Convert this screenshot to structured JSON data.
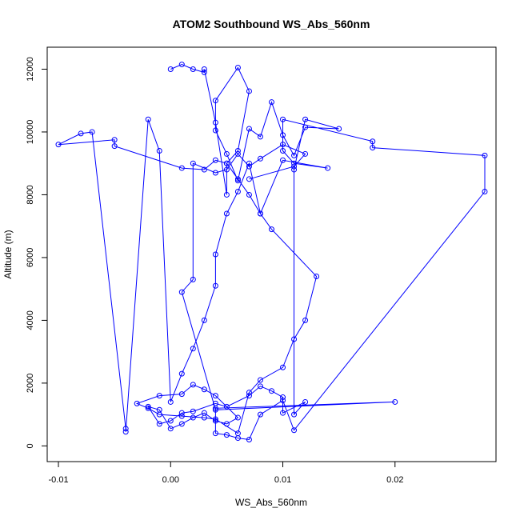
{
  "chart_data": {
    "type": "line",
    "title": "ATOM2 Southbound WS_Abs_560nm",
    "xlabel": "WS_Abs_560nm",
    "ylabel": "Altitude (m)",
    "xlim": [
      -0.011,
      0.029
    ],
    "ylim": [
      -500,
      12700
    ],
    "x_ticks": [
      -0.01,
      0.0,
      0.01,
      0.02
    ],
    "x_tick_labels": [
      "-0.01",
      "0.00",
      "0.01",
      "0.02"
    ],
    "y_ticks": [
      0,
      2000,
      4000,
      6000,
      8000,
      10000,
      12000
    ],
    "y_tick_labels": [
      "0",
      "2000",
      "4000",
      "6000",
      "8000",
      "10000",
      "12000"
    ],
    "grid": false,
    "legend": "none",
    "series": [
      {
        "color": "#0000ff",
        "marker": "open-circle",
        "x": [
          0.0,
          0.001,
          0.002,
          0.003,
          0.003,
          0.004,
          0.005,
          0.005,
          0.006,
          0.007,
          0.006,
          0.004,
          0.004,
          0.005,
          0.006,
          0.007,
          0.008,
          0.009,
          0.01,
          0.011,
          0.012,
          0.015,
          0.012,
          0.011,
          0.011,
          0.012,
          0.01,
          0.01,
          0.009,
          0.008,
          0.007,
          0.005,
          0.004,
          0.002,
          0.001,
          0.0,
          -0.001,
          -0.002,
          -0.001,
          0.0,
          0.001,
          0.002,
          0.003,
          0.004,
          0.005,
          0.006,
          0.004,
          0.003,
          0.002,
          0.001,
          -0.001,
          -0.003,
          -0.002,
          -0.001,
          0.001,
          0.003,
          0.004,
          0.006,
          0.007,
          0.008,
          0.01,
          0.011,
          0.012,
          0.013,
          0.009,
          0.008,
          0.007,
          0.006,
          0.005,
          0.004,
          0.004,
          0.003,
          0.002,
          0.001,
          0.0,
          -0.001,
          -0.002,
          -0.004,
          -0.004,
          -0.007,
          -0.008,
          -0.01,
          -0.005,
          -0.005,
          0.001,
          0.003,
          0.004,
          0.005,
          0.006,
          0.007,
          0.008,
          0.01,
          0.014,
          0.011,
          0.01,
          0.01,
          0.018,
          0.018,
          0.028,
          0.028,
          0.011,
          0.01,
          0.008,
          0.007,
          0.006,
          0.005,
          0.004,
          0.004,
          0.02,
          0.004,
          0.001,
          0.002,
          0.002,
          0.004,
          0.005,
          0.006,
          0.007,
          0.008,
          0.01,
          0.012,
          0.011,
          0.007
        ],
        "y": [
          12000,
          12150,
          12000,
          11900,
          12000,
          10300,
          8000,
          9000,
          9400,
          11300,
          12050,
          11000,
          10050,
          9300,
          8450,
          10100,
          9850,
          10950,
          9900,
          9250,
          10150,
          10100,
          10400,
          8800,
          1000,
          1400,
          1050,
          1550,
          1750,
          1900,
          1600,
          1250,
          1350,
          1100,
          1050,
          800,
          700,
          1250,
          1150,
          550,
          700,
          900,
          1050,
          800,
          700,
          900,
          1600,
          1800,
          1950,
          1650,
          1600,
          1350,
          1200,
          1000,
          950,
          900,
          850,
          400,
          1700,
          2100,
          2500,
          3400,
          4000,
          5400,
          6900,
          7400,
          9000,
          8100,
          7400,
          6100,
          5100,
          4000,
          3100,
          2300,
          1400,
          9400,
          10400,
          450,
          550,
          10000,
          9950,
          9600,
          9750,
          9550,
          8850,
          8800,
          9100,
          9000,
          8500,
          8000,
          7400,
          9100,
          8850,
          9000,
          9400,
          10400,
          9700,
          9500,
          9250,
          8100,
          500,
          1450,
          1000,
          200,
          250,
          350,
          400,
          1200,
          1400,
          1150,
          4900,
          5300,
          9000,
          8700,
          8800,
          9300,
          8900,
          9150,
          9600,
          9300,
          8900,
          8500
        ]
      }
    ]
  }
}
